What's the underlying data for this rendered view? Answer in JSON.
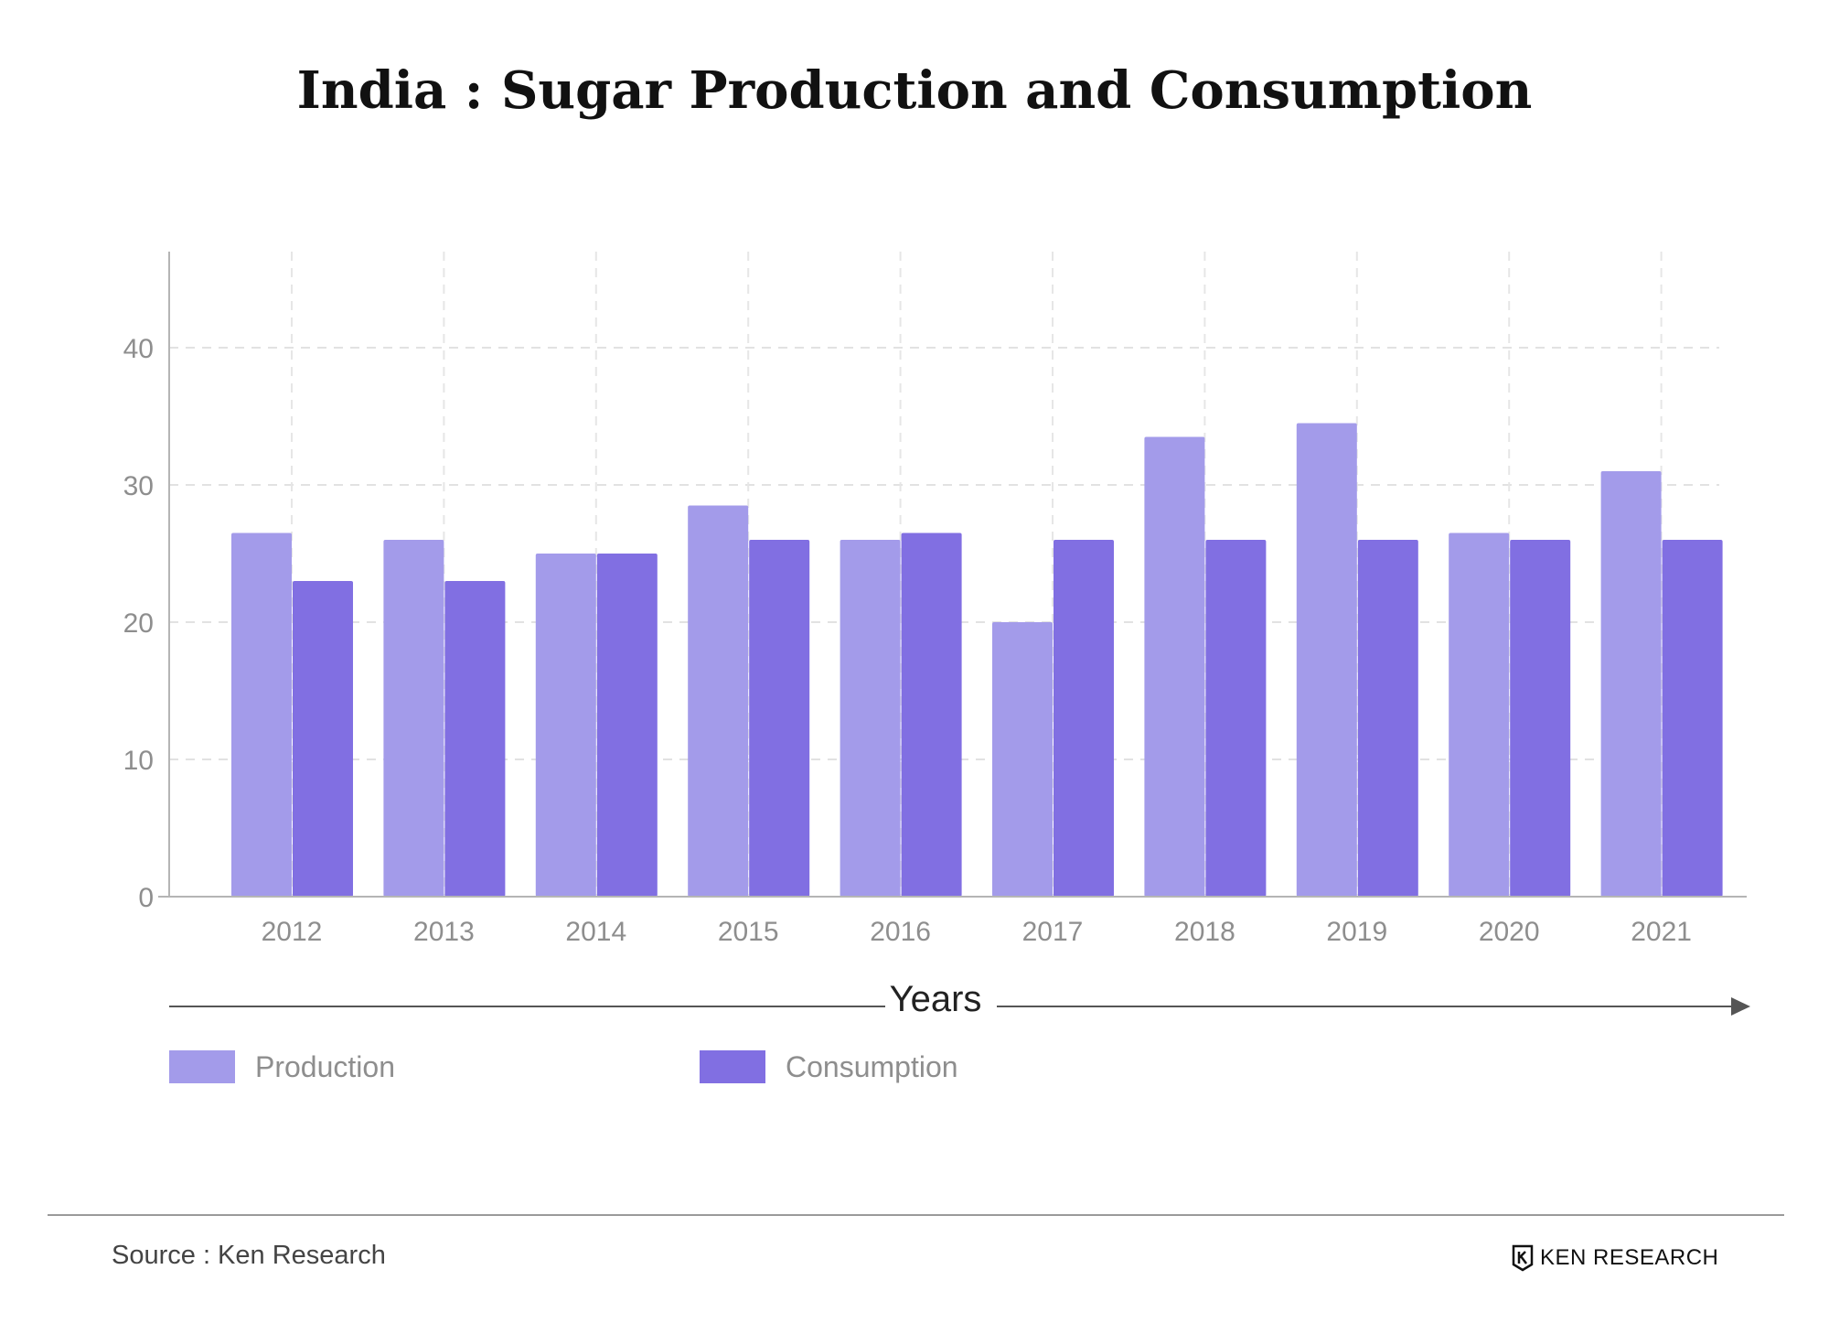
{
  "chart_data": {
    "type": "bar",
    "title": "India : Sugar Production and Consumption",
    "xlabel": "Years",
    "ylabel": "",
    "categories": [
      "2012",
      "2013",
      "2014",
      "2015",
      "2016",
      "2017",
      "2018",
      "2019",
      "2020",
      "2021"
    ],
    "series": [
      {
        "name": "Production",
        "color": "#a39bea",
        "values": [
          26.5,
          26.0,
          25.0,
          28.5,
          26.0,
          20.0,
          33.5,
          34.5,
          26.5,
          31.0
        ]
      },
      {
        "name": "Consumption",
        "color": "#816fe2",
        "values": [
          23.0,
          23.0,
          25.0,
          26.0,
          26.5,
          26.0,
          26.0,
          26.0,
          26.0,
          26.0
        ]
      }
    ],
    "ylim": [
      0,
      47
    ],
    "yticks": [
      0,
      10,
      20,
      30,
      40
    ],
    "grid": true,
    "legend_position": "bottom-left"
  },
  "footer": {
    "source": "Source : Ken Research",
    "brand": "KEN RESEARCH"
  }
}
